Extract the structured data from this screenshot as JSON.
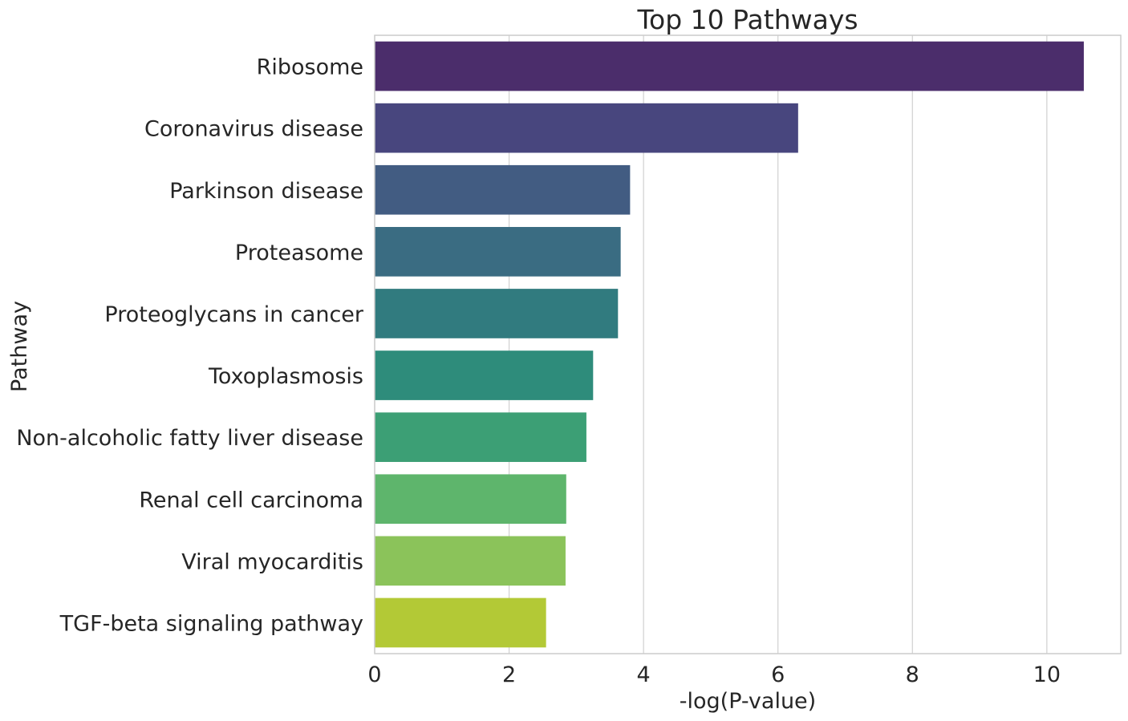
{
  "chart_data": {
    "type": "bar",
    "orientation": "horizontal",
    "title": "Top 10 Pathways",
    "xlabel": "-log(P-value)",
    "ylabel": "Pathway",
    "xlim": [
      0,
      11.1
    ],
    "xticks": [
      0,
      2,
      4,
      6,
      8,
      10
    ],
    "grid": "vertical",
    "categories": [
      "Ribosome",
      "Coronavirus disease",
      "Parkinson disease",
      "Proteasome",
      "Proteoglycans in cancer",
      "Toxoplasmosis",
      "Non-alcoholic fatty liver disease",
      "Renal cell carcinoma",
      "Viral myocarditis",
      "TGF-beta signaling pathway"
    ],
    "values": [
      10.55,
      6.3,
      3.8,
      3.66,
      3.62,
      3.25,
      3.15,
      2.85,
      2.84,
      2.55
    ],
    "colors": [
      "#4b2d6b",
      "#48467e",
      "#425c82",
      "#3a6c82",
      "#317b7f",
      "#2e8c7b",
      "#3c9f75",
      "#5eb56c",
      "#8bc35a",
      "#b3c936"
    ]
  }
}
